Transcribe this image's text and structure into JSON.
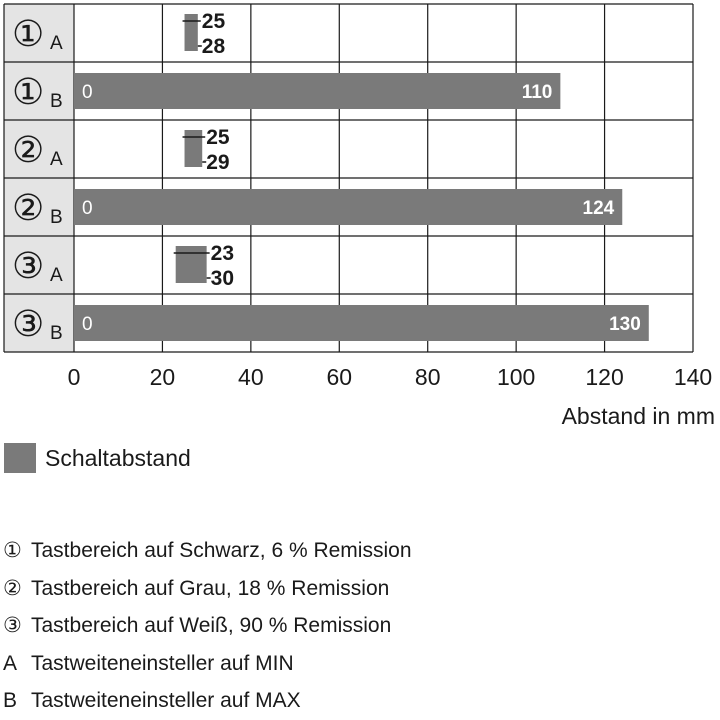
{
  "colors": {
    "bar": "#7a7a7a",
    "grid": "#1a1a1a",
    "label_bg": "#e4e4e4",
    "text": "#1a1a1a"
  },
  "chart_data": {
    "type": "bar",
    "orientation": "horizontal",
    "categories": [
      {
        "circle": "①",
        "letter": "A"
      },
      {
        "circle": "①",
        "letter": "B"
      },
      {
        "circle": "②",
        "letter": "A"
      },
      {
        "circle": "②",
        "letter": "B"
      },
      {
        "circle": "③",
        "letter": "A"
      },
      {
        "circle": "③",
        "letter": "B"
      }
    ],
    "series": [
      {
        "name": "Schaltabstand",
        "ranges": [
          {
            "start": 25,
            "end": 28,
            "labels": [
              "25",
              "28"
            ]
          },
          {
            "start": 0,
            "end": 110,
            "labels": [
              "0",
              "110"
            ]
          },
          {
            "start": 25,
            "end": 29,
            "labels": [
              "25",
              "29"
            ]
          },
          {
            "start": 0,
            "end": 124,
            "labels": [
              "0",
              "124"
            ]
          },
          {
            "start": 23,
            "end": 30,
            "labels": [
              "23",
              "30"
            ]
          },
          {
            "start": 0,
            "end": 130,
            "labels": [
              "0",
              "130"
            ]
          }
        ]
      }
    ],
    "xticks": [
      0,
      20,
      40,
      60,
      80,
      100,
      120,
      140
    ],
    "xlim": [
      0,
      140
    ],
    "xlabel": "Abstand in mm",
    "grid": true,
    "legend_position": "below"
  },
  "legend": {
    "label": "Schaltabstand"
  },
  "notes": [
    {
      "mark": "①",
      "text": "Tastbereich auf Schwarz, 6 % Remission"
    },
    {
      "mark": "②",
      "text": "Tastbereich auf Grau, 18 % Remission"
    },
    {
      "mark": "③",
      "text": "Tastbereich auf Weiß, 90 % Remission"
    },
    {
      "mark": "A",
      "text": "Tastweiteneinsteller auf MIN"
    },
    {
      "mark": "B",
      "text": "Tastweiteneinsteller auf MAX"
    }
  ]
}
